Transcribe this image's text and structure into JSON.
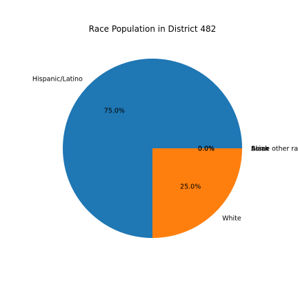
{
  "chart_data": {
    "type": "pie",
    "title": "Race Population in District 482",
    "slices": [
      {
        "label": "Asian",
        "value": 0.0,
        "pct_label": "0.0%",
        "color": "#1f77b4"
      },
      {
        "label": "Black",
        "value": 0.0,
        "pct_label": "0.0%",
        "color": "#ff7f0e"
      },
      {
        "label": "Hispanic/Latino",
        "value": 75.0,
        "pct_label": "75.0%",
        "color": "#1f77b4"
      },
      {
        "label": "White",
        "value": 25.0,
        "pct_label": "25.0%",
        "color": "#ff7f0e"
      },
      {
        "label": "Some other race",
        "value": 0.0,
        "pct_label": "0.0%",
        "color": "#2ca02c"
      }
    ],
    "start_angle_deg": 0,
    "direction": "counterclockwise",
    "legend": "none"
  }
}
